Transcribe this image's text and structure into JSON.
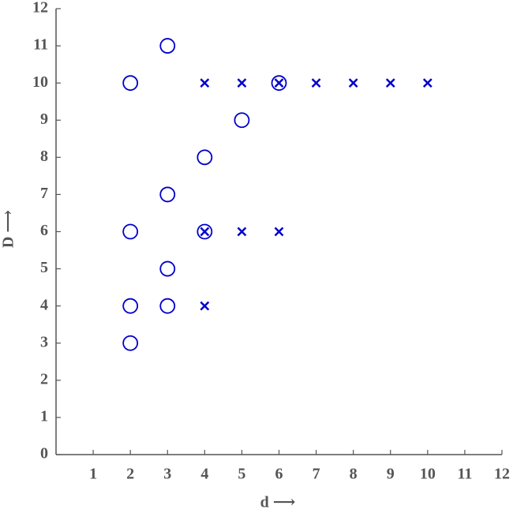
{
  "chart_data": {
    "type": "scatter",
    "xlabel": "d ⟶",
    "ylabel": "D ⟶",
    "xlim": [
      0,
      12
    ],
    "ylim": [
      0,
      12
    ],
    "xticks": [
      1,
      2,
      3,
      4,
      5,
      6,
      7,
      8,
      9,
      10,
      11,
      12
    ],
    "yticks": [
      0,
      1,
      2,
      3,
      4,
      5,
      6,
      7,
      8,
      9,
      10,
      11,
      12
    ],
    "grid": false,
    "series": [
      {
        "marker": "o",
        "color": "#0000cc",
        "x": [
          2,
          3,
          6,
          5,
          4,
          3,
          2,
          4,
          3,
          2,
          3,
          2
        ],
        "values": [
          10,
          11,
          10,
          9,
          8,
          7,
          6,
          6,
          5,
          4,
          4,
          3
        ]
      },
      {
        "marker": "x",
        "color": "#0000cc",
        "x": [
          4,
          5,
          6,
          7,
          8,
          9,
          10,
          4,
          5,
          6,
          4
        ],
        "values": [
          10,
          10,
          10,
          10,
          10,
          10,
          10,
          6,
          6,
          6,
          4
        ]
      }
    ]
  }
}
